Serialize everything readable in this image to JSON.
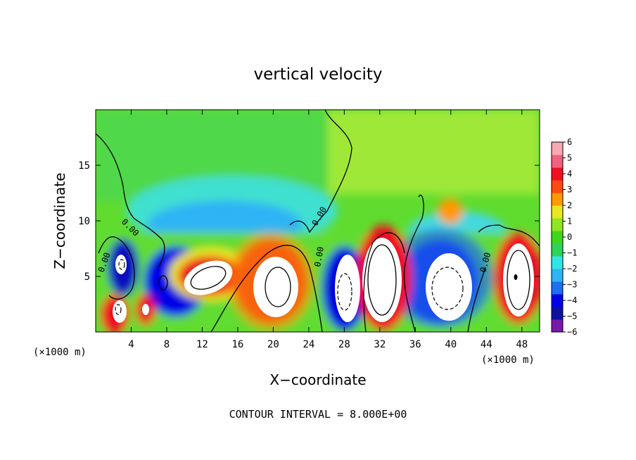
{
  "chart_data": {
    "type": "heatmap",
    "title": "vertical velocity",
    "xlabel": "X−coordinate",
    "ylabel": "Z−coordinate",
    "x_unit_left": "(×1000 m)",
    "x_unit_right": "(×1000 m)",
    "footer": "CONTOUR INTERVAL = 8.000E+00",
    "xlim": [
      0,
      50
    ],
    "ylim": [
      0,
      20
    ],
    "xticks": [
      4,
      8,
      12,
      16,
      20,
      24,
      28,
      32,
      36,
      40,
      44,
      48
    ],
    "yticks": [
      5,
      10,
      15
    ],
    "contour_labels": [
      "0.00",
      "0.00",
      "0.00",
      "0.00",
      "0.00"
    ],
    "colorbar": {
      "ticks": [
        6,
        5,
        4,
        3,
        2,
        1,
        0,
        -1,
        -2,
        -3,
        -4,
        -5,
        -6
      ],
      "colors": [
        "#7a18a8",
        "#1010a0",
        "#0000e6",
        "#1e6ef0",
        "#2fb4f5",
        "#30e6e8",
        "#2fd25a",
        "#40d61e",
        "#90e620",
        "#e8e820",
        "#ff9a00",
        "#ff4a10",
        "#f01020",
        "#f06080",
        "#f8a8b0"
      ]
    },
    "cells": [
      {
        "x": [
          0.0,
          5.0
        ],
        "z": [
          0.0,
          10.0
        ],
        "v": 1
      },
      {
        "x": [
          5.0,
          12.0
        ],
        "z": [
          0.0,
          10.0
        ],
        "v": -4
      },
      {
        "x": [
          12.0,
          18.0
        ],
        "z": [
          0.0,
          10.0
        ],
        "v": 3
      },
      {
        "x": [
          18.0,
          24.0
        ],
        "z": [
          0.0,
          10.0
        ],
        "v": 6
      },
      {
        "x": [
          24.0,
          30.0
        ],
        "z": [
          0.0,
          10.0
        ],
        "v": -3
      },
      {
        "x": [
          30.0,
          36.0
        ],
        "z": [
          0.0,
          10.0
        ],
        "v": 6
      },
      {
        "x": [
          36.0,
          44.0
        ],
        "z": [
          0.0,
          10.0
        ],
        "v": -5
      },
      {
        "x": [
          44.0,
          50.0
        ],
        "z": [
          0.0,
          10.0
        ],
        "v": 5
      },
      {
        "x": [
          0.0,
          25.0
        ],
        "z": [
          10.0,
          20.0
        ],
        "v": -1
      },
      {
        "x": [
          25.0,
          50.0
        ],
        "z": [
          10.0,
          20.0
        ],
        "v": 1
      }
    ]
  }
}
